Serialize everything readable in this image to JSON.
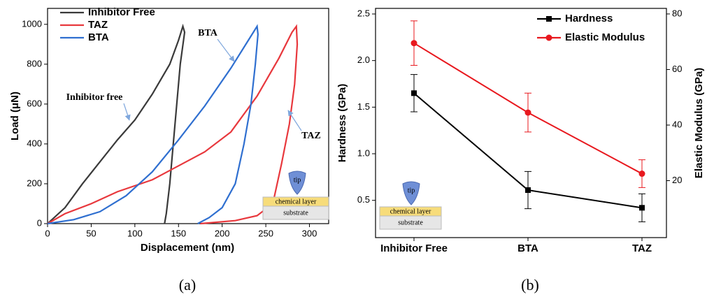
{
  "chart_data": [
    {
      "type": "line",
      "panel_label": "(a)",
      "xlabel": "Displacement (nm)",
      "ylabel": "Load (μN)",
      "xlim": [
        0,
        322
      ],
      "ylim": [
        0,
        1080
      ],
      "xticks": [
        0,
        50,
        100,
        150,
        200,
        250,
        300
      ],
      "yticks": [
        0,
        200,
        400,
        600,
        800,
        1000
      ],
      "legend": "upper left",
      "series": [
        {
          "name": "Inhibitor Free",
          "color": "#3a3a3a",
          "x": [
            0,
            20,
            40,
            60,
            80,
            100,
            120,
            140,
            150,
            155,
            157,
            152,
            148,
            144,
            140,
            136,
            134
          ],
          "values": [
            0,
            80,
            200,
            310,
            420,
            520,
            650,
            800,
            920,
            990,
            960,
            800,
            600,
            400,
            200,
            50,
            0
          ]
        },
        {
          "name": "TAZ",
          "color": "#e8383d",
          "x": [
            0,
            20,
            50,
            80,
            120,
            150,
            180,
            210,
            240,
            265,
            280,
            285,
            286,
            283,
            277,
            268,
            258,
            240,
            215,
            175
          ],
          "values": [
            0,
            50,
            100,
            160,
            220,
            290,
            360,
            460,
            640,
            830,
            960,
            990,
            900,
            700,
            500,
            300,
            100,
            40,
            15,
            0
          ]
        },
        {
          "name": "BTA",
          "color": "#2f6fd0",
          "x": [
            0,
            30,
            60,
            90,
            120,
            150,
            180,
            210,
            230,
            240,
            241,
            238,
            233,
            225,
            215,
            200,
            185,
            172
          ],
          "values": [
            0,
            20,
            60,
            140,
            260,
            420,
            590,
            780,
            920,
            990,
            950,
            800,
            600,
            400,
            200,
            80,
            30,
            0
          ]
        }
      ],
      "annotations": [
        "BTA",
        "Inhibitor free",
        "TAZ"
      ],
      "inset_labels": [
        "tip",
        "chemical layer",
        "substrate"
      ]
    },
    {
      "type": "line",
      "panel_label": "(b)",
      "ylabel": "Hardness (GPa)",
      "y2label": "Elastic Modulus (GPa)",
      "categories": [
        "Inhibitor Free",
        "BTA",
        "TAZ"
      ],
      "ylim": [
        0.1,
        2.56
      ],
      "yticks": [
        0.5,
        {
          "value": 1,
          "label": "1.0"
        },
        1.5,
        {
          "value": 2,
          "label": "2.0"
        },
        2.5
      ],
      "y2lim": [
        -0.5,
        82
      ],
      "y2ticks": [
        20,
        40,
        60,
        80
      ],
      "legend": "upper right",
      "series": [
        {
          "name": "Hardness",
          "color": "#000000",
          "marker": "square",
          "values": [
            1.65,
            0.61,
            0.42
          ],
          "errors": [
            0.2,
            0.2,
            0.15
          ]
        },
        {
          "name": "Elastic Modulus",
          "color": "#e8181e",
          "marker": "circle",
          "axis": "y2",
          "values": [
            69.5,
            44.5,
            22.5
          ],
          "errors": [
            8,
            7,
            5
          ]
        }
      ],
      "inset_labels": [
        "tip",
        "chemical layer",
        "substrate"
      ]
    }
  ]
}
